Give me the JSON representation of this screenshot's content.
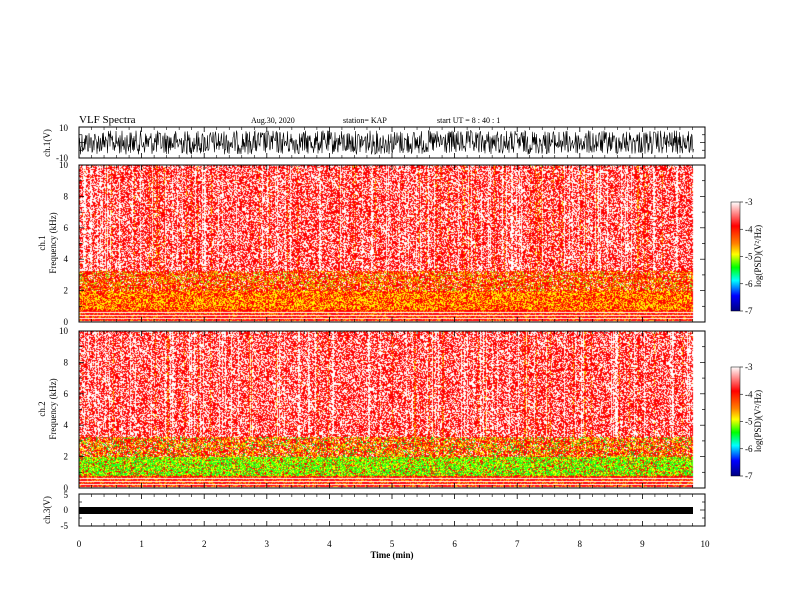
{
  "header": {
    "title": "VLF Spectra",
    "date": "Aug.30, 2020",
    "station": "station= KAP",
    "start": "start  UT =   8  : 40 : 1"
  },
  "chart_data": [
    {
      "type": "line",
      "name": "ch1-waveform",
      "ylabel": "ch.1(V)",
      "ylim": [
        -10,
        10
      ],
      "yticks": [
        "10",
        "-10"
      ],
      "xlim": [
        0,
        10
      ]
    },
    {
      "type": "heatmap",
      "name": "ch1-spectrogram",
      "ylabel": "ch.1\nFrequency (kHz)",
      "ylabel_line1": "ch.1",
      "ylabel_line2": "Frequency  (kHz)",
      "ylim": [
        0,
        10
      ],
      "yticks": [
        "0",
        "2",
        "4",
        "6",
        "8",
        "10"
      ],
      "xlim": [
        0,
        10
      ],
      "colorbar": {
        "label": "log(PSD)(V²/Hz)",
        "range": [
          -7,
          -3
        ],
        "ticks": [
          "-3",
          "-4",
          "-5",
          "-6",
          "-7"
        ]
      }
    },
    {
      "type": "heatmap",
      "name": "ch2-spectrogram",
      "ylabel": "ch.2\nFrequency (kHz)",
      "ylabel_line1": "ch.2",
      "ylabel_line2": "Frequency  (kHz)",
      "ylim": [
        0,
        10
      ],
      "yticks": [
        "0",
        "2",
        "4",
        "6",
        "8",
        "10"
      ],
      "xlim": [
        0,
        10
      ],
      "colorbar": {
        "label": "log(PSD)(V²/Hz)",
        "range": [
          -7,
          -3
        ],
        "ticks": [
          "-3",
          "-4",
          "-5",
          "-6",
          "-7"
        ]
      }
    },
    {
      "type": "line",
      "name": "ch3-waveform",
      "ylabel": "ch.3(V)",
      "ylim": [
        -5,
        5
      ],
      "yticks": [
        "5",
        "0",
        "-5"
      ],
      "xlim": [
        0,
        10
      ],
      "xlabel": "Time  (min)",
      "xticks": [
        "0",
        "1",
        "2",
        "3",
        "4",
        "5",
        "6",
        "7",
        "8",
        "9",
        "10"
      ]
    }
  ],
  "colors": {
    "white": "#ffffff",
    "red": "#ff0000",
    "orange": "#ff8000",
    "yellow": "#ffff00",
    "green": "#00ff00",
    "cyan": "#00ffff",
    "blue": "#0000ff",
    "navy": "#000080",
    "black": "#000000"
  }
}
